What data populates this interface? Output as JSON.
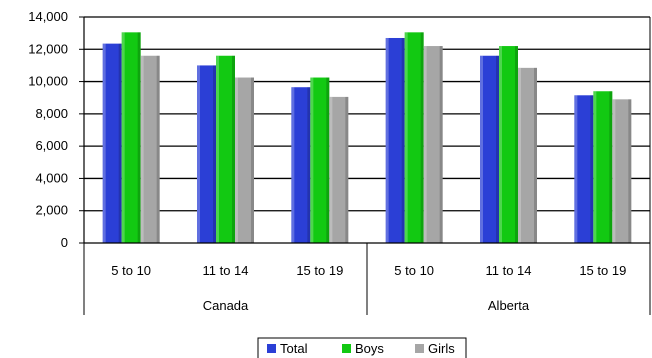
{
  "chart_data": {
    "type": "bar",
    "groups": [
      {
        "label": "Canada",
        "categories": [
          "5 to 10",
          "11 to 14",
          "15 to 19"
        ]
      },
      {
        "label": "Alberta",
        "categories": [
          "5 to 10",
          "11 to 14",
          "15 to 19"
        ]
      }
    ],
    "series": [
      {
        "name": "Total",
        "color": "#2b3fd6",
        "values": [
          12350,
          11000,
          9650,
          12700,
          11600,
          9150
        ]
      },
      {
        "name": "Boys",
        "color": "#12c912",
        "values": [
          13050,
          11600,
          10250,
          13050,
          12200,
          9400
        ]
      },
      {
        "name": "Girls",
        "color": "#a6a6a6",
        "values": [
          11600,
          10250,
          9050,
          12200,
          10850,
          8900
        ]
      }
    ],
    "y_ticks": [
      "0",
      "2,000",
      "4,000",
      "6,000",
      "8,000",
      "10,000",
      "12,000",
      "14,000"
    ],
    "ylim": [
      0,
      14000
    ],
    "grid": true,
    "legend_position": "bottom"
  }
}
